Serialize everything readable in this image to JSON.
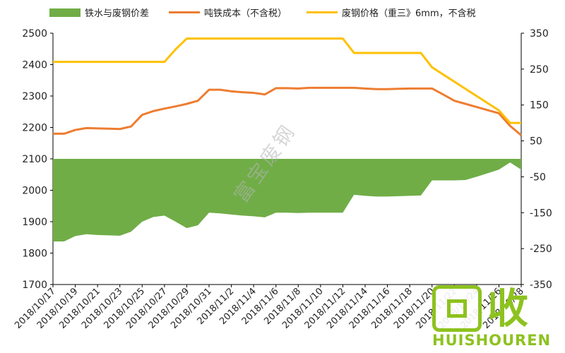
{
  "legend": {
    "series1": "铁水与废钢价差",
    "series2": "吨铁成本（不含税）",
    "series3": "废钢价格（重三》6mm，不含税"
  },
  "watermark": "富宝废钢",
  "logo": {
    "cn": "回收",
    "en": "HUISHOUREN"
  },
  "colors": {
    "area": "#70ad47",
    "cost": "#ed7d31",
    "scrap": "#ffc000"
  },
  "chart_data": {
    "type": "line",
    "x": [
      "2018/10/17",
      "2018/10/18",
      "2018/10/19",
      "2018/10/20",
      "2018/10/21",
      "2018/10/22",
      "2018/10/23",
      "2018/10/24",
      "2018/10/25",
      "2018/10/26",
      "2018/10/27",
      "2018/10/28",
      "2018/10/29",
      "2018/10/30",
      "2018/10/31",
      "2018/11/1",
      "2018/11/2",
      "2018/11/3",
      "2018/11/4",
      "2018/11/5",
      "2018/11/6",
      "2018/11/7",
      "2018/11/8",
      "2018/11/9",
      "2018/11/10",
      "2018/11/11",
      "2018/11/12",
      "2018/11/13",
      "2018/11/14",
      "2018/11/15",
      "2018/11/16",
      "2018/11/17",
      "2018/11/18",
      "2018/11/19",
      "2018/11/20",
      "2018/11/21",
      "2018/11/22",
      "2018/11/23",
      "2018/11/24",
      "2018/11/25",
      "2018/11/26",
      "2018/11/27",
      "2018/11/28"
    ],
    "xticks": [
      "2018/10/17",
      "2018/10/19",
      "2018/10/21",
      "2018/10/23",
      "2018/10/25",
      "2018/10/27",
      "2018/10/29",
      "2018/10/31",
      "2018/11/2",
      "2018/11/4",
      "2018/11/6",
      "2018/11/8",
      "2018/11/10",
      "2018/11/12",
      "2018/11/14",
      "2018/11/16",
      "2018/11/18",
      "2018/11/20",
      "2018/11/22",
      "2018/11/24",
      "2018/11/26",
      "2018/11/28"
    ],
    "ylim": [
      1700,
      2500
    ],
    "yticks": [
      1700,
      1800,
      1900,
      2000,
      2100,
      2200,
      2300,
      2400,
      2500
    ],
    "y2lim": [
      -350,
      350
    ],
    "y2ticks": [
      -350,
      -250,
      -150,
      -50,
      50,
      150,
      250,
      350
    ],
    "series": [
      {
        "name": "铁水与废钢价差",
        "axis": "right",
        "kind": "area",
        "values": [
          -230,
          -230,
          -215,
          -210,
          -212,
          -213,
          -214,
          -203,
          -175,
          -162,
          -158,
          -175,
          -193,
          -185,
          -150,
          -152,
          -155,
          -158,
          -160,
          -163,
          -150,
          -150,
          -151,
          -150,
          -150,
          -150,
          -150,
          -100,
          -103,
          -105,
          -105,
          -104,
          -103,
          -102,
          -60,
          -60,
          -60,
          -59,
          -50,
          -40,
          -30,
          -10,
          -30
        ]
      },
      {
        "name": "吨铁成本（不含税）",
        "axis": "left",
        "kind": "line",
        "values": [
          2180,
          2180,
          2192,
          2198,
          2197,
          2196,
          2195,
          2203,
          2240,
          2252,
          2260,
          2267,
          2275,
          2285,
          2320,
          2320,
          2315,
          2312,
          2310,
          2305,
          2325,
          2325,
          2324,
          2326,
          2326,
          2326,
          2326,
          2326,
          2324,
          2322,
          2322,
          2323,
          2324,
          2324,
          2324,
          2305,
          2285,
          2275,
          2265,
          2255,
          2245,
          2205,
          2175
        ]
      },
      {
        "name": "废钢价格（重三》6mm，不含税",
        "axis": "right",
        "kind": "line",
        "values": [
          270,
          270,
          270,
          270,
          270,
          270,
          270,
          270,
          270,
          270,
          270,
          305,
          335,
          335,
          335,
          335,
          335,
          335,
          335,
          335,
          335,
          335,
          335,
          335,
          335,
          335,
          335,
          295,
          295,
          295,
          295,
          295,
          295,
          295,
          255,
          235,
          215,
          195,
          175,
          155,
          135,
          100,
          100
        ]
      }
    ]
  }
}
